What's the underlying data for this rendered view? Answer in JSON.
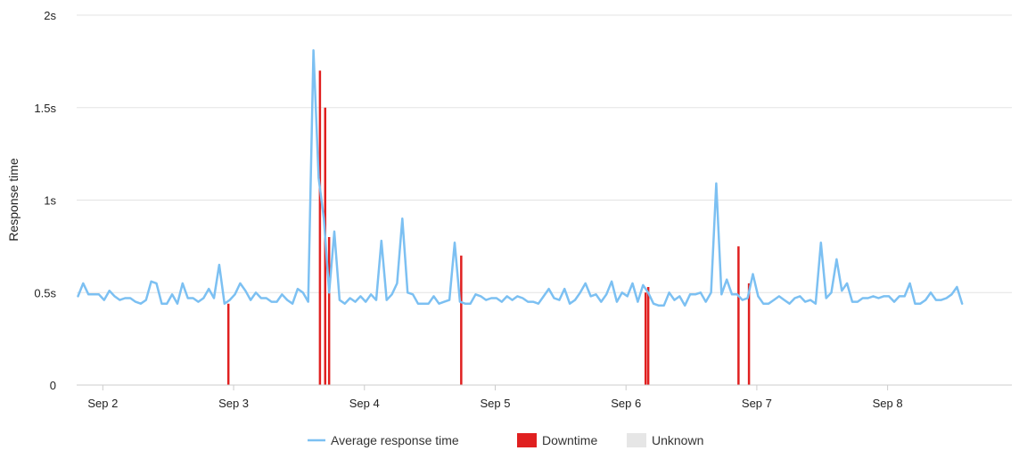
{
  "chart_data": {
    "type": "line",
    "ylabel": "Response time",
    "ylim": [
      0,
      2
    ],
    "y_ticks": [
      {
        "value": 0,
        "label": "0"
      },
      {
        "value": 0.5,
        "label": "0.5s"
      },
      {
        "value": 1,
        "label": "1s"
      },
      {
        "value": 1.5,
        "label": "1.5s"
      },
      {
        "value": 2,
        "label": "2s"
      }
    ],
    "xlim": [
      1.8,
      8.95
    ],
    "x_ticks": [
      {
        "value": 2,
        "label": "Sep 2"
      },
      {
        "value": 3,
        "label": "Sep 3"
      },
      {
        "value": 4,
        "label": "Sep 4"
      },
      {
        "value": 5,
        "label": "Sep 5"
      },
      {
        "value": 6,
        "label": "Sep 6"
      },
      {
        "value": 7,
        "label": "Sep 7"
      },
      {
        "value": 8,
        "label": "Sep 8"
      }
    ],
    "grid": true,
    "legend_position": "bottom-center",
    "legend": [
      {
        "label": "Average response time",
        "kind": "line",
        "color": "#7cc0f2"
      },
      {
        "label": "Downtime",
        "kind": "box",
        "color": "#e02020"
      },
      {
        "label": "Unknown",
        "kind": "box",
        "color": "#e6e6e6"
      }
    ],
    "series": [
      {
        "name": "Average response time",
        "color": "#7cc0f2",
        "points": [
          [
            1.81,
            0.48
          ],
          [
            1.85,
            0.55
          ],
          [
            1.89,
            0.49
          ],
          [
            1.93,
            0.49
          ],
          [
            1.97,
            0.49
          ],
          [
            2.01,
            0.46
          ],
          [
            2.05,
            0.51
          ],
          [
            2.09,
            0.48
          ],
          [
            2.13,
            0.46
          ],
          [
            2.17,
            0.47
          ],
          [
            2.21,
            0.47
          ],
          [
            2.25,
            0.45
          ],
          [
            2.29,
            0.44
          ],
          [
            2.33,
            0.46
          ],
          [
            2.37,
            0.56
          ],
          [
            2.41,
            0.55
          ],
          [
            2.45,
            0.44
          ],
          [
            2.49,
            0.44
          ],
          [
            2.53,
            0.49
          ],
          [
            2.57,
            0.44
          ],
          [
            2.61,
            0.55
          ],
          [
            2.65,
            0.47
          ],
          [
            2.69,
            0.47
          ],
          [
            2.73,
            0.45
          ],
          [
            2.77,
            0.47
          ],
          [
            2.81,
            0.52
          ],
          [
            2.85,
            0.47
          ],
          [
            2.89,
            0.65
          ],
          [
            2.93,
            0.44
          ],
          [
            2.97,
            0.46
          ],
          [
            3.01,
            0.49
          ],
          [
            3.05,
            0.55
          ],
          [
            3.09,
            0.51
          ],
          [
            3.13,
            0.46
          ],
          [
            3.17,
            0.5
          ],
          [
            3.21,
            0.47
          ],
          [
            3.25,
            0.47
          ],
          [
            3.29,
            0.45
          ],
          [
            3.33,
            0.45
          ],
          [
            3.37,
            0.49
          ],
          [
            3.41,
            0.46
          ],
          [
            3.45,
            0.44
          ],
          [
            3.49,
            0.52
          ],
          [
            3.53,
            0.5
          ],
          [
            3.57,
            0.45
          ],
          [
            3.61,
            1.81
          ],
          [
            3.65,
            1.12
          ],
          [
            3.69,
            0.9
          ],
          [
            3.73,
            0.5
          ],
          [
            3.77,
            0.83
          ],
          [
            3.81,
            0.46
          ],
          [
            3.85,
            0.44
          ],
          [
            3.89,
            0.47
          ],
          [
            3.93,
            0.45
          ],
          [
            3.97,
            0.48
          ],
          [
            4.01,
            0.45
          ],
          [
            4.05,
            0.49
          ],
          [
            4.09,
            0.46
          ],
          [
            4.13,
            0.78
          ],
          [
            4.17,
            0.46
          ],
          [
            4.21,
            0.49
          ],
          [
            4.25,
            0.55
          ],
          [
            4.29,
            0.9
          ],
          [
            4.33,
            0.5
          ],
          [
            4.37,
            0.49
          ],
          [
            4.41,
            0.44
          ],
          [
            4.45,
            0.44
          ],
          [
            4.49,
            0.44
          ],
          [
            4.53,
            0.48
          ],
          [
            4.57,
            0.44
          ],
          [
            4.61,
            0.45
          ],
          [
            4.65,
            0.46
          ],
          [
            4.69,
            0.77
          ],
          [
            4.73,
            0.45
          ],
          [
            4.77,
            0.44
          ],
          [
            4.81,
            0.44
          ],
          [
            4.85,
            0.49
          ],
          [
            4.89,
            0.48
          ],
          [
            4.93,
            0.46
          ],
          [
            4.97,
            0.47
          ],
          [
            5.01,
            0.47
          ],
          [
            5.05,
            0.45
          ],
          [
            5.09,
            0.48
          ],
          [
            5.13,
            0.46
          ],
          [
            5.17,
            0.48
          ],
          [
            5.21,
            0.47
          ],
          [
            5.25,
            0.45
          ],
          [
            5.29,
            0.45
          ],
          [
            5.33,
            0.44
          ],
          [
            5.37,
            0.48
          ],
          [
            5.41,
            0.52
          ],
          [
            5.45,
            0.47
          ],
          [
            5.49,
            0.46
          ],
          [
            5.53,
            0.52
          ],
          [
            5.57,
            0.44
          ],
          [
            5.61,
            0.46
          ],
          [
            5.65,
            0.5
          ],
          [
            5.69,
            0.55
          ],
          [
            5.73,
            0.48
          ],
          [
            5.77,
            0.49
          ],
          [
            5.81,
            0.45
          ],
          [
            5.85,
            0.49
          ],
          [
            5.89,
            0.56
          ],
          [
            5.93,
            0.45
          ],
          [
            5.97,
            0.5
          ],
          [
            6.01,
            0.48
          ],
          [
            6.05,
            0.55
          ],
          [
            6.09,
            0.45
          ],
          [
            6.13,
            0.54
          ],
          [
            6.17,
            0.5
          ],
          [
            6.21,
            0.44
          ],
          [
            6.25,
            0.43
          ],
          [
            6.29,
            0.43
          ],
          [
            6.33,
            0.5
          ],
          [
            6.37,
            0.46
          ],
          [
            6.41,
            0.48
          ],
          [
            6.45,
            0.43
          ],
          [
            6.49,
            0.49
          ],
          [
            6.53,
            0.49
          ],
          [
            6.57,
            0.5
          ],
          [
            6.61,
            0.45
          ],
          [
            6.65,
            0.5
          ],
          [
            6.69,
            1.09
          ],
          [
            6.73,
            0.49
          ],
          [
            6.77,
            0.57
          ],
          [
            6.81,
            0.49
          ],
          [
            6.85,
            0.49
          ],
          [
            6.89,
            0.46
          ],
          [
            6.93,
            0.47
          ],
          [
            6.97,
            0.6
          ],
          [
            7.01,
            0.48
          ],
          [
            7.05,
            0.44
          ],
          [
            7.09,
            0.44
          ],
          [
            7.13,
            0.46
          ],
          [
            7.17,
            0.48
          ],
          [
            7.21,
            0.46
          ],
          [
            7.25,
            0.44
          ],
          [
            7.29,
            0.47
          ],
          [
            7.33,
            0.48
          ],
          [
            7.37,
            0.45
          ],
          [
            7.41,
            0.46
          ],
          [
            7.45,
            0.44
          ],
          [
            7.49,
            0.77
          ],
          [
            7.53,
            0.47
          ],
          [
            7.57,
            0.5
          ],
          [
            7.61,
            0.68
          ],
          [
            7.65,
            0.51
          ],
          [
            7.69,
            0.55
          ],
          [
            7.73,
            0.45
          ],
          [
            7.77,
            0.45
          ],
          [
            7.81,
            0.47
          ],
          [
            7.85,
            0.47
          ],
          [
            7.89,
            0.48
          ],
          [
            7.93,
            0.47
          ],
          [
            7.97,
            0.48
          ],
          [
            8.01,
            0.48
          ],
          [
            8.05,
            0.45
          ],
          [
            8.09,
            0.48
          ],
          [
            8.13,
            0.48
          ],
          [
            8.17,
            0.55
          ],
          [
            8.21,
            0.44
          ],
          [
            8.25,
            0.44
          ],
          [
            8.29,
            0.46
          ],
          [
            8.33,
            0.5
          ],
          [
            8.37,
            0.46
          ],
          [
            8.41,
            0.46
          ],
          [
            8.45,
            0.47
          ],
          [
            8.49,
            0.49
          ],
          [
            8.53,
            0.53
          ],
          [
            8.57,
            0.44
          ]
        ]
      }
    ],
    "downtime_marks": [
      {
        "x": 2.96,
        "value": 0.44
      },
      {
        "x": 3.66,
        "value": 1.7
      },
      {
        "x": 3.7,
        "value": 1.5
      },
      {
        "x": 3.73,
        "value": 0.8
      },
      {
        "x": 4.74,
        "value": 0.7
      },
      {
        "x": 6.15,
        "value": 0.5
      },
      {
        "x": 6.17,
        "value": 0.53
      },
      {
        "x": 6.86,
        "value": 0.75
      },
      {
        "x": 6.94,
        "value": 0.55
      }
    ]
  }
}
